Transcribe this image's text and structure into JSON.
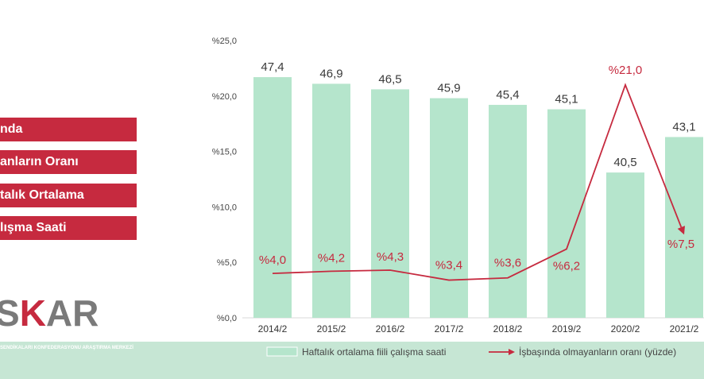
{
  "title_lines": [
    "nda",
    "anların Oranı",
    "talık Ortalama",
    "lışma Saati"
  ],
  "logo": {
    "text": "SKAR",
    "subtitle": "SENDİKALARI KONFEDERASYONU ARAŞTIRMA MERKEZİ",
    "colors": {
      "text": "#7a7a7a",
      "accent": "#c62a3f"
    }
  },
  "chart_data": {
    "type": "bar",
    "categories": [
      "2014/2",
      "2015/2",
      "2016/2",
      "2017/2",
      "2018/2",
      "2019/2",
      "2020/2",
      "2021/2"
    ],
    "y_ticks": [
      "%0,0",
      "%5,0",
      "%10,0",
      "%15,0",
      "%20,0",
      "%25,0"
    ],
    "ylim": [
      0,
      25
    ],
    "series": [
      {
        "name": "Haftalık ortalama fiili çalışma saati",
        "kind": "bar",
        "color": "#b5e5cc",
        "values": [
          47.4,
          46.9,
          46.5,
          45.9,
          45.4,
          45.1,
          40.5,
          43.1
        ],
        "labels": [
          "47,4",
          "46,9",
          "46,5",
          "45,9",
          "45,4",
          "45,1",
          "40,5",
          "43,1"
        ]
      },
      {
        "name": "İşbaşında olmayanların oranı (yüzde)",
        "kind": "line",
        "color": "#c62a3f",
        "values": [
          4.0,
          4.2,
          4.3,
          3.4,
          3.6,
          6.2,
          21.0,
          7.5
        ],
        "labels": [
          "%4,0",
          "%4,2",
          "%4,3",
          "%3,4",
          "%3,6",
          "%6,2",
          "%21,0",
          "%7,5"
        ]
      }
    ],
    "bar_display_heights_pct": [
      21.7,
      21.1,
      20.6,
      19.8,
      19.2,
      18.8,
      13.1,
      16.3
    ],
    "legend_position": "bottom-right",
    "grid": false
  }
}
